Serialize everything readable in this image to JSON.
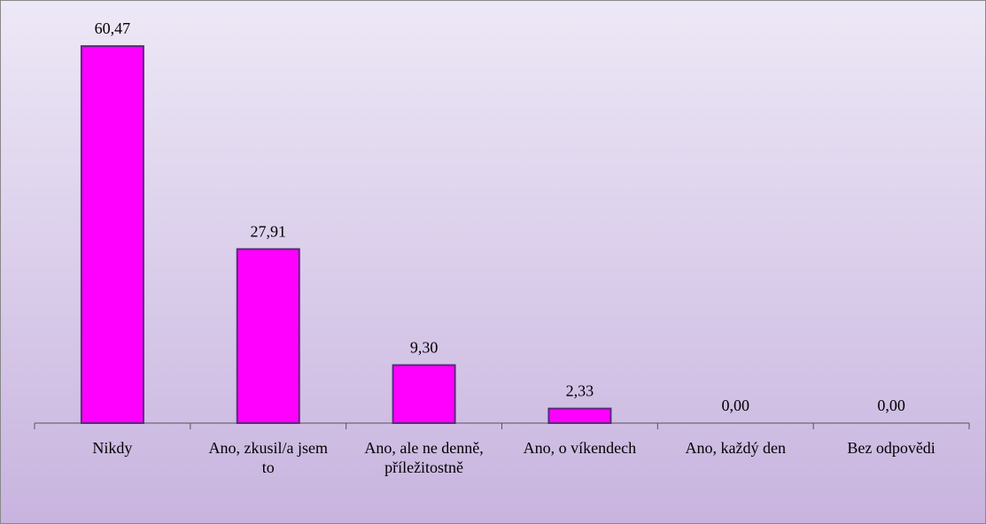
{
  "chart_data": {
    "type": "bar",
    "categories": [
      "Nikdy",
      "Ano, zkusil/a jsem to",
      "Ano, ale ne denně, příležitostně",
      "Ano, o víkendech",
      "Ano, každý den",
      "Bez odpovědi"
    ],
    "values": [
      60.47,
      27.91,
      9.3,
      2.33,
      0.0,
      0.0
    ],
    "value_labels": [
      "60,47",
      "27,91",
      "9,30",
      "2,33",
      "0,00",
      "0,00"
    ],
    "color": "#ff00ff",
    "ylim": [
      0,
      70
    ]
  }
}
